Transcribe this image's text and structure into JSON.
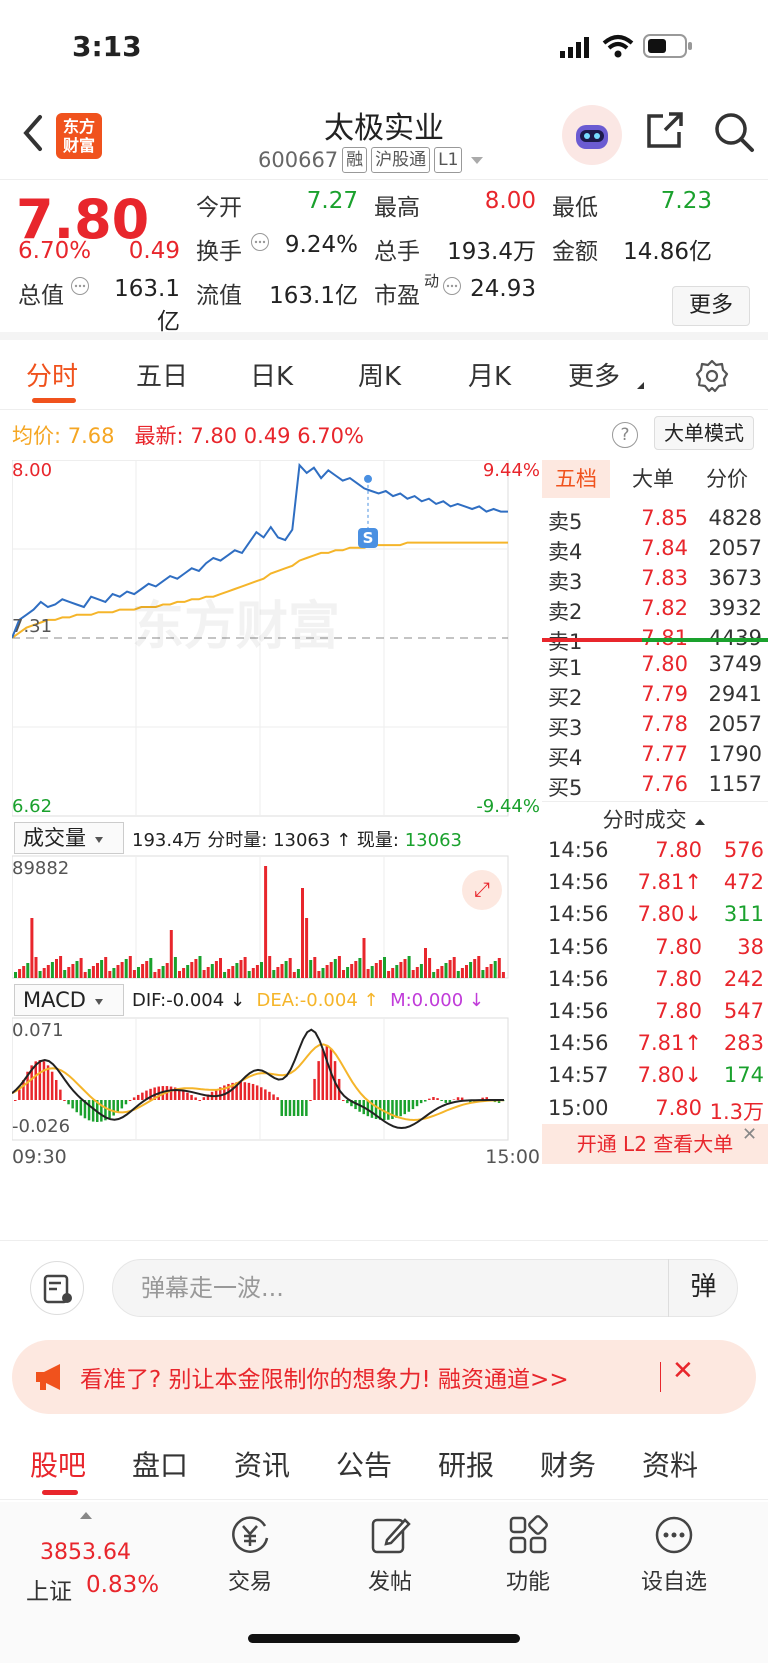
{
  "status_bar": {
    "time": "3:13"
  },
  "header": {
    "back_icon": "chevron-left-icon",
    "logo_text_line1": "东方",
    "logo_text_line2": "财富",
    "title": "太极实业",
    "code": "600667",
    "tags": [
      "融",
      "沪股通",
      "L1"
    ]
  },
  "quote": {
    "price": "7.80",
    "change_pct": "6.70%",
    "change": "0.49",
    "open_label": "今开",
    "open": "7.27",
    "high_label": "最高",
    "high": "8.00",
    "low_label": "最低",
    "low": "7.23",
    "turnover_label": "换手",
    "turnover": "9.24%",
    "volume_label": "总手",
    "volume": "193.4万",
    "amount_label": "金额",
    "amount": "14.86亿",
    "mcap_label": "总值",
    "mcap": "163.1亿",
    "float_label": "流值",
    "float": "163.1亿",
    "pe_label": "市盈",
    "pe_sup": "动",
    "pe": "24.93",
    "more_button": "更多"
  },
  "tabs": [
    "分时",
    "五日",
    "日K",
    "周K",
    "月K",
    "更多"
  ],
  "info_line": {
    "avg_label": "均价:",
    "avg": "7.68",
    "latest_label": "最新:",
    "latest": "7.80",
    "change": "0.49",
    "change_pct": "6.70%",
    "help": "?",
    "big_order_mode": "大单模式"
  },
  "chart_data": {
    "type": "line",
    "price_axis": {
      "top": "8.00",
      "mid": "7.31",
      "bottom": "6.62",
      "top_pct": "9.44%",
      "bottom_pct": "-9.44%"
    },
    "price_line": [
      7.31,
      7.38,
      7.4,
      7.42,
      7.45,
      7.43,
      7.44,
      7.46,
      7.45,
      7.44,
      7.43,
      7.47,
      7.46,
      7.45,
      7.48,
      7.47,
      7.49,
      7.48,
      7.5,
      7.52,
      7.51,
      7.53,
      7.55,
      7.54,
      7.56,
      7.58,
      7.57,
      7.6,
      7.62,
      7.61,
      7.63,
      7.65,
      7.64,
      7.68,
      7.72,
      7.7,
      7.74,
      7.7,
      7.69,
      7.73,
      7.98,
      7.95,
      7.97,
      7.93,
      7.96,
      7.94,
      7.92,
      7.93,
      7.91,
      7.89,
      7.88,
      7.87,
      7.88,
      7.86,
      7.87,
      7.85,
      7.86,
      7.84,
      7.85,
      7.83,
      7.84,
      7.82,
      7.83,
      7.82,
      7.81,
      7.82,
      7.8,
      7.81,
      7.8,
      7.8
    ],
    "avg_line": [
      7.31,
      7.33,
      7.35,
      7.36,
      7.37,
      7.38,
      7.38,
      7.39,
      7.39,
      7.4,
      7.4,
      7.4,
      7.41,
      7.41,
      7.41,
      7.42,
      7.42,
      7.42,
      7.43,
      7.43,
      7.43,
      7.44,
      7.44,
      7.45,
      7.45,
      7.46,
      7.46,
      7.47,
      7.47,
      7.48,
      7.49,
      7.5,
      7.51,
      7.52,
      7.53,
      7.54,
      7.56,
      7.57,
      7.58,
      7.59,
      7.61,
      7.62,
      7.63,
      7.64,
      7.64,
      7.65,
      7.65,
      7.66,
      7.66,
      7.66,
      7.67,
      7.67,
      7.67,
      7.67,
      7.67,
      7.68,
      7.68,
      7.68,
      7.68,
      7.68,
      7.68,
      7.68,
      7.68,
      7.68,
      7.68,
      7.68,
      7.68,
      7.68,
      7.68,
      7.68
    ],
    "volume": {
      "label": "成交量",
      "total": "193.4万",
      "tick_label": "分时量:",
      "tick": "13063",
      "now_label": "现量:",
      "now": "13063",
      "axis_max": "89882"
    },
    "macd": {
      "label": "MACD",
      "dif": "DIF:-0.004",
      "dea": "DEA:-0.004",
      "m": "M:0.000",
      "axis_top": "0.071",
      "axis_bottom": "-0.026"
    },
    "time_start": "09:30",
    "time_end": "15:00",
    "marker": "S",
    "watermark": "东方财富",
    "colors": {
      "up": "#e8262c",
      "down": "#1aa12d",
      "price": "#2f6ec2",
      "avg": "#f5b52a"
    }
  },
  "order_book": {
    "tabs": [
      "五档",
      "大单",
      "分价"
    ],
    "asks": [
      {
        "label": "卖5",
        "price": "7.85",
        "vol": "4828"
      },
      {
        "label": "卖4",
        "price": "7.84",
        "vol": "2057"
      },
      {
        "label": "卖3",
        "price": "7.83",
        "vol": "3673"
      },
      {
        "label": "卖2",
        "price": "7.82",
        "vol": "3932"
      },
      {
        "label": "卖1",
        "price": "7.81",
        "vol": "4439"
      }
    ],
    "bids": [
      {
        "label": "买1",
        "price": "7.80",
        "vol": "3749"
      },
      {
        "label": "买2",
        "price": "7.79",
        "vol": "2941"
      },
      {
        "label": "买3",
        "price": "7.78",
        "vol": "2057"
      },
      {
        "label": "买4",
        "price": "7.77",
        "vol": "1790"
      },
      {
        "label": "买5",
        "price": "7.76",
        "vol": "1157"
      }
    ],
    "ticks_title": "分时成交",
    "ticks": [
      {
        "time": "14:56",
        "price": "7.80",
        "vol": "576",
        "dir": ""
      },
      {
        "time": "14:56",
        "price": "7.81↑",
        "vol": "472",
        "dir": "up"
      },
      {
        "time": "14:56",
        "price": "7.80↓",
        "vol": "311",
        "dir": "down"
      },
      {
        "time": "14:56",
        "price": "7.80",
        "vol": "38",
        "dir": ""
      },
      {
        "time": "14:56",
        "price": "7.80",
        "vol": "242",
        "dir": ""
      },
      {
        "time": "14:56",
        "price": "7.80",
        "vol": "547",
        "dir": ""
      },
      {
        "time": "14:56",
        "price": "7.81↑",
        "vol": "283",
        "dir": "up"
      },
      {
        "time": "14:57",
        "price": "7.80↓",
        "vol": "174",
        "dir": "down"
      },
      {
        "time": "15:00",
        "price": "7.80",
        "vol": "1.3万",
        "dir": ""
      }
    ],
    "l2_banner": "开通 L2 查看大单"
  },
  "comment_bar": {
    "placeholder": "弹幕走一波...",
    "danmu_label": "弹"
  },
  "ad": {
    "text": "看准了? 别让本金限制你的想象力! 融资通道>>"
  },
  "bottom_tabs": [
    "股吧",
    "盘口",
    "资讯",
    "公告",
    "研报",
    "财务",
    "资料"
  ],
  "dock": {
    "index_value": "3853.64",
    "index_name": "上证",
    "index_pct": "0.83%",
    "items": [
      "交易",
      "发帖",
      "功能",
      "设自选"
    ]
  }
}
